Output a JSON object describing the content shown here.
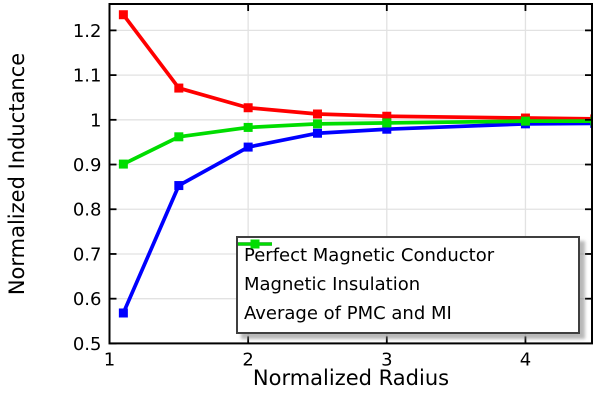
{
  "chart_data": {
    "type": "line",
    "title": "",
    "xlabel": "Normalized Radius",
    "ylabel": "Normalized Inductance",
    "xlim": [
      1,
      4.48
    ],
    "ylim": [
      0.5,
      1.259
    ],
    "x_ticks": [
      1,
      2,
      3,
      4
    ],
    "y_ticks": [
      0.5,
      0.6,
      0.7,
      0.8,
      0.9,
      1,
      1.1,
      1.2
    ],
    "grid": true,
    "legend_position": "bottom-right",
    "x": [
      1.1,
      1.5,
      2,
      2.5,
      3,
      4,
      4.5
    ],
    "series": [
      {
        "name": "Perfect Magnetic Conductor",
        "color": "#ff0000",
        "values": [
          1.235,
          1.071,
          1.027,
          1.013,
          1.008,
          1.004,
          1.002
        ]
      },
      {
        "name": "Magnetic Insulation",
        "color": "#0000ff",
        "values": [
          0.568,
          0.853,
          0.939,
          0.97,
          0.979,
          0.991,
          0.992
        ]
      },
      {
        "name": "Average of PMC and MI",
        "color": "#00dd00",
        "values": [
          0.901,
          0.962,
          0.983,
          0.991,
          0.993,
          0.997,
          0.997
        ]
      }
    ],
    "colors": {
      "background": "#ffffff",
      "frame": "#000000",
      "grid": "#e2e2e2",
      "text": "#000000"
    }
  }
}
